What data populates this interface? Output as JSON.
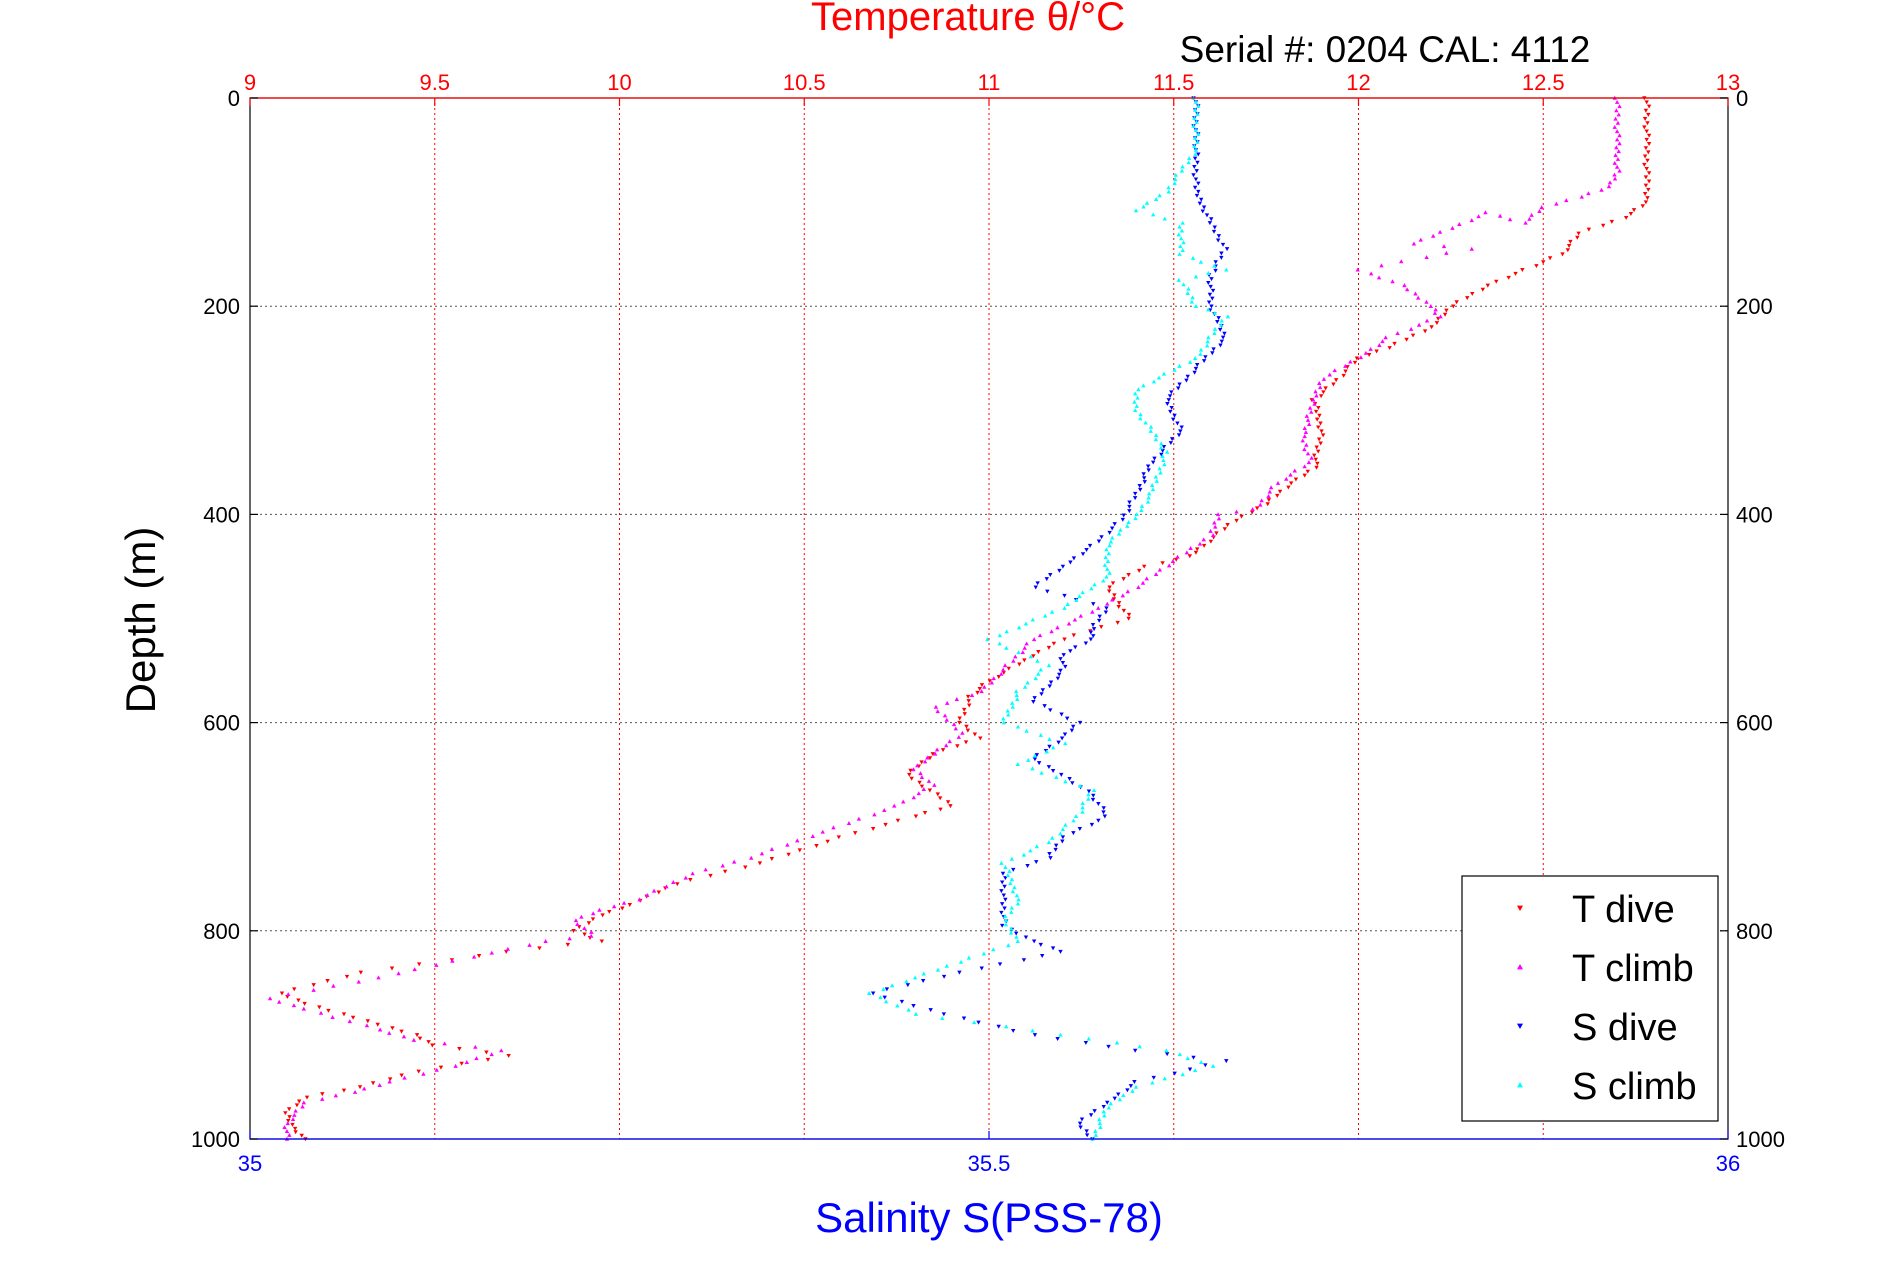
{
  "chart_data": {
    "type": "scatter",
    "title": "Temperature θ/°C",
    "subtitle": "Serial #: 0204  CAL: 4112",
    "ylabel": "Depth (m)",
    "xlabel": "Salinity S(PSS-78)",
    "y_axis": {
      "range": [
        0,
        1000
      ],
      "reversed": true,
      "ticks": [
        "0",
        "200",
        "400",
        "600",
        "800",
        "1000"
      ],
      "tick_values": [
        0,
        200,
        400,
        600,
        800,
        1000
      ]
    },
    "x_axis_top": {
      "label_ref": "title",
      "range": [
        9,
        13
      ],
      "ticks": [
        "9",
        "9.5",
        "10",
        "10.5",
        "11",
        "11.5",
        "12",
        "12.5",
        "13"
      ],
      "tick_values": [
        9,
        9.5,
        10,
        10.5,
        11,
        11.5,
        12,
        12.5,
        13
      ],
      "color": "#ff0000",
      "grid": true
    },
    "x_axis_bottom": {
      "range": [
        35,
        36
      ],
      "ticks": [
        "35",
        "35.5",
        "36"
      ],
      "tick_values": [
        35,
        35.5,
        36
      ],
      "color": "#0000ff"
    },
    "grid": true,
    "legend_position": "bottom-right",
    "series": [
      {
        "name": "T dive",
        "axis": "top",
        "marker": "triangle-down",
        "color": "#ff0000",
        "points": [
          [
            12.78,
            0
          ],
          [
            12.78,
            40
          ],
          [
            12.78,
            80
          ],
          [
            12.78,
            100
          ],
          [
            12.72,
            115
          ],
          [
            12.6,
            130
          ],
          [
            12.55,
            150
          ],
          [
            12.45,
            165
          ],
          [
            12.35,
            180
          ],
          [
            12.25,
            200
          ],
          [
            12.2,
            220
          ],
          [
            12.08,
            240
          ],
          [
            12.0,
            250
          ],
          [
            11.93,
            275
          ],
          [
            11.88,
            290
          ],
          [
            11.9,
            320
          ],
          [
            11.88,
            355
          ],
          [
            11.82,
            370
          ],
          [
            11.75,
            390
          ],
          [
            11.65,
            410
          ],
          [
            11.58,
            430
          ],
          [
            11.55,
            440
          ],
          [
            11.42,
            450
          ],
          [
            11.32,
            470
          ],
          [
            11.38,
            500
          ],
          [
            11.2,
            520
          ],
          [
            11.1,
            540
          ],
          [
            11.0,
            560
          ],
          [
            10.95,
            575
          ],
          [
            10.92,
            600
          ],
          [
            10.97,
            615
          ],
          [
            10.85,
            630
          ],
          [
            10.78,
            650
          ],
          [
            10.9,
            680
          ],
          [
            10.8,
            690
          ],
          [
            10.6,
            710
          ],
          [
            10.38,
            735
          ],
          [
            10.15,
            755
          ],
          [
            10.03,
            775
          ],
          [
            9.95,
            785
          ],
          [
            9.88,
            800
          ],
          [
            9.95,
            810
          ],
          [
            9.7,
            820
          ],
          [
            9.3,
            840
          ],
          [
            9.08,
            860
          ],
          [
            9.15,
            870
          ],
          [
            9.25,
            880
          ],
          [
            9.35,
            890
          ],
          [
            9.45,
            900
          ],
          [
            9.5,
            910
          ],
          [
            9.7,
            920
          ],
          [
            9.45,
            935
          ],
          [
            9.3,
            950
          ],
          [
            9.15,
            960
          ],
          [
            9.1,
            975
          ],
          [
            9.12,
            990
          ],
          [
            9.15,
            1000
          ]
        ]
      },
      {
        "name": "T climb",
        "axis": "top",
        "marker": "triangle-up",
        "color": "#ff00ff",
        "points": [
          [
            12.7,
            0
          ],
          [
            12.7,
            40
          ],
          [
            12.7,
            70
          ],
          [
            12.68,
            85
          ],
          [
            12.6,
            95
          ],
          [
            12.5,
            105
          ],
          [
            12.45,
            120
          ],
          [
            12.35,
            110
          ],
          [
            12.15,
            140
          ],
          [
            12.3,
            145
          ],
          [
            12.0,
            165
          ],
          [
            12.12,
            180
          ],
          [
            12.2,
            200
          ],
          [
            12.22,
            210
          ],
          [
            12.08,
            230
          ],
          [
            12.02,
            245
          ],
          [
            11.9,
            270
          ],
          [
            11.88,
            290
          ],
          [
            11.85,
            325
          ],
          [
            11.87,
            350
          ],
          [
            11.78,
            370
          ],
          [
            11.72,
            395
          ],
          [
            11.62,
            400
          ],
          [
            11.6,
            420
          ],
          [
            11.5,
            445
          ],
          [
            11.4,
            470
          ],
          [
            11.3,
            490
          ],
          [
            11.12,
            520
          ],
          [
            11.05,
            545
          ],
          [
            10.98,
            570
          ],
          [
            10.85,
            585
          ],
          [
            10.93,
            610
          ],
          [
            10.85,
            630
          ],
          [
            10.8,
            645
          ],
          [
            10.85,
            660
          ],
          [
            10.75,
            680
          ],
          [
            10.55,
            705
          ],
          [
            10.35,
            730
          ],
          [
            10.2,
            745
          ],
          [
            10.05,
            770
          ],
          [
            9.95,
            780
          ],
          [
            9.88,
            790
          ],
          [
            9.93,
            805
          ],
          [
            9.8,
            810
          ],
          [
            9.6,
            825
          ],
          [
            9.35,
            845
          ],
          [
            9.05,
            865
          ],
          [
            9.15,
            875
          ],
          [
            9.35,
            895
          ],
          [
            9.45,
            905
          ],
          [
            9.68,
            915
          ],
          [
            9.55,
            930
          ],
          [
            9.38,
            945
          ],
          [
            9.28,
            955
          ],
          [
            9.15,
            965
          ],
          [
            9.1,
            985
          ],
          [
            9.1,
            1000
          ]
        ]
      },
      {
        "name": "S dive",
        "axis": "bottom",
        "marker": "triangle-down",
        "color": "#0000ff",
        "points": [
          [
            35.64,
            0
          ],
          [
            35.64,
            50
          ],
          [
            35.64,
            90
          ],
          [
            35.65,
            120
          ],
          [
            35.66,
            145
          ],
          [
            35.65,
            170
          ],
          [
            35.65,
            200
          ],
          [
            35.66,
            230
          ],
          [
            35.64,
            260
          ],
          [
            35.62,
            290
          ],
          [
            35.63,
            320
          ],
          [
            35.61,
            350
          ],
          [
            35.6,
            380
          ],
          [
            35.59,
            405
          ],
          [
            35.57,
            430
          ],
          [
            35.55,
            450
          ],
          [
            35.53,
            470
          ],
          [
            35.58,
            490
          ],
          [
            35.57,
            510
          ],
          [
            35.57,
            520
          ],
          [
            35.55,
            535
          ],
          [
            35.55,
            550
          ],
          [
            35.53,
            580
          ],
          [
            35.56,
            600
          ],
          [
            35.55,
            615
          ],
          [
            35.53,
            635
          ],
          [
            35.55,
            650
          ],
          [
            35.57,
            670
          ],
          [
            35.58,
            690
          ],
          [
            35.55,
            710
          ],
          [
            35.54,
            730
          ],
          [
            35.51,
            745
          ],
          [
            35.51,
            770
          ],
          [
            35.51,
            795
          ],
          [
            35.53,
            810
          ],
          [
            35.55,
            820
          ],
          [
            35.48,
            840
          ],
          [
            35.42,
            860
          ],
          [
            35.47,
            880
          ],
          [
            35.53,
            900
          ],
          [
            35.6,
            915
          ],
          [
            35.66,
            925
          ],
          [
            35.6,
            945
          ],
          [
            35.58,
            965
          ],
          [
            35.56,
            985
          ],
          [
            35.57,
            1000
          ]
        ]
      },
      {
        "name": "S climb",
        "axis": "bottom",
        "marker": "triangle-up",
        "color": "#00ffff",
        "points": [
          [
            35.64,
            0
          ],
          [
            35.64,
            50
          ],
          [
            35.62,
            90
          ],
          [
            35.6,
            108
          ],
          [
            35.63,
            120
          ],
          [
            35.63,
            150
          ],
          [
            35.66,
            165
          ],
          [
            35.63,
            175
          ],
          [
            35.64,
            200
          ],
          [
            35.66,
            210
          ],
          [
            35.64,
            250
          ],
          [
            35.6,
            280
          ],
          [
            35.6,
            300
          ],
          [
            35.62,
            340
          ],
          [
            35.61,
            380
          ],
          [
            35.6,
            400
          ],
          [
            35.58,
            430
          ],
          [
            35.58,
            460
          ],
          [
            35.55,
            490
          ],
          [
            35.5,
            520
          ],
          [
            35.54,
            545
          ],
          [
            35.52,
            570
          ],
          [
            35.51,
            600
          ],
          [
            35.55,
            620
          ],
          [
            35.52,
            640
          ],
          [
            35.57,
            665
          ],
          [
            35.56,
            690
          ],
          [
            35.54,
            715
          ],
          [
            35.51,
            735
          ],
          [
            35.52,
            770
          ],
          [
            35.51,
            790
          ],
          [
            35.52,
            810
          ],
          [
            35.48,
            830
          ],
          [
            35.42,
            860
          ],
          [
            35.45,
            880
          ],
          [
            35.55,
            900
          ],
          [
            35.62,
            915
          ],
          [
            35.65,
            930
          ],
          [
            35.6,
            950
          ],
          [
            35.58,
            970
          ],
          [
            35.57,
            1000
          ]
        ]
      }
    ]
  }
}
